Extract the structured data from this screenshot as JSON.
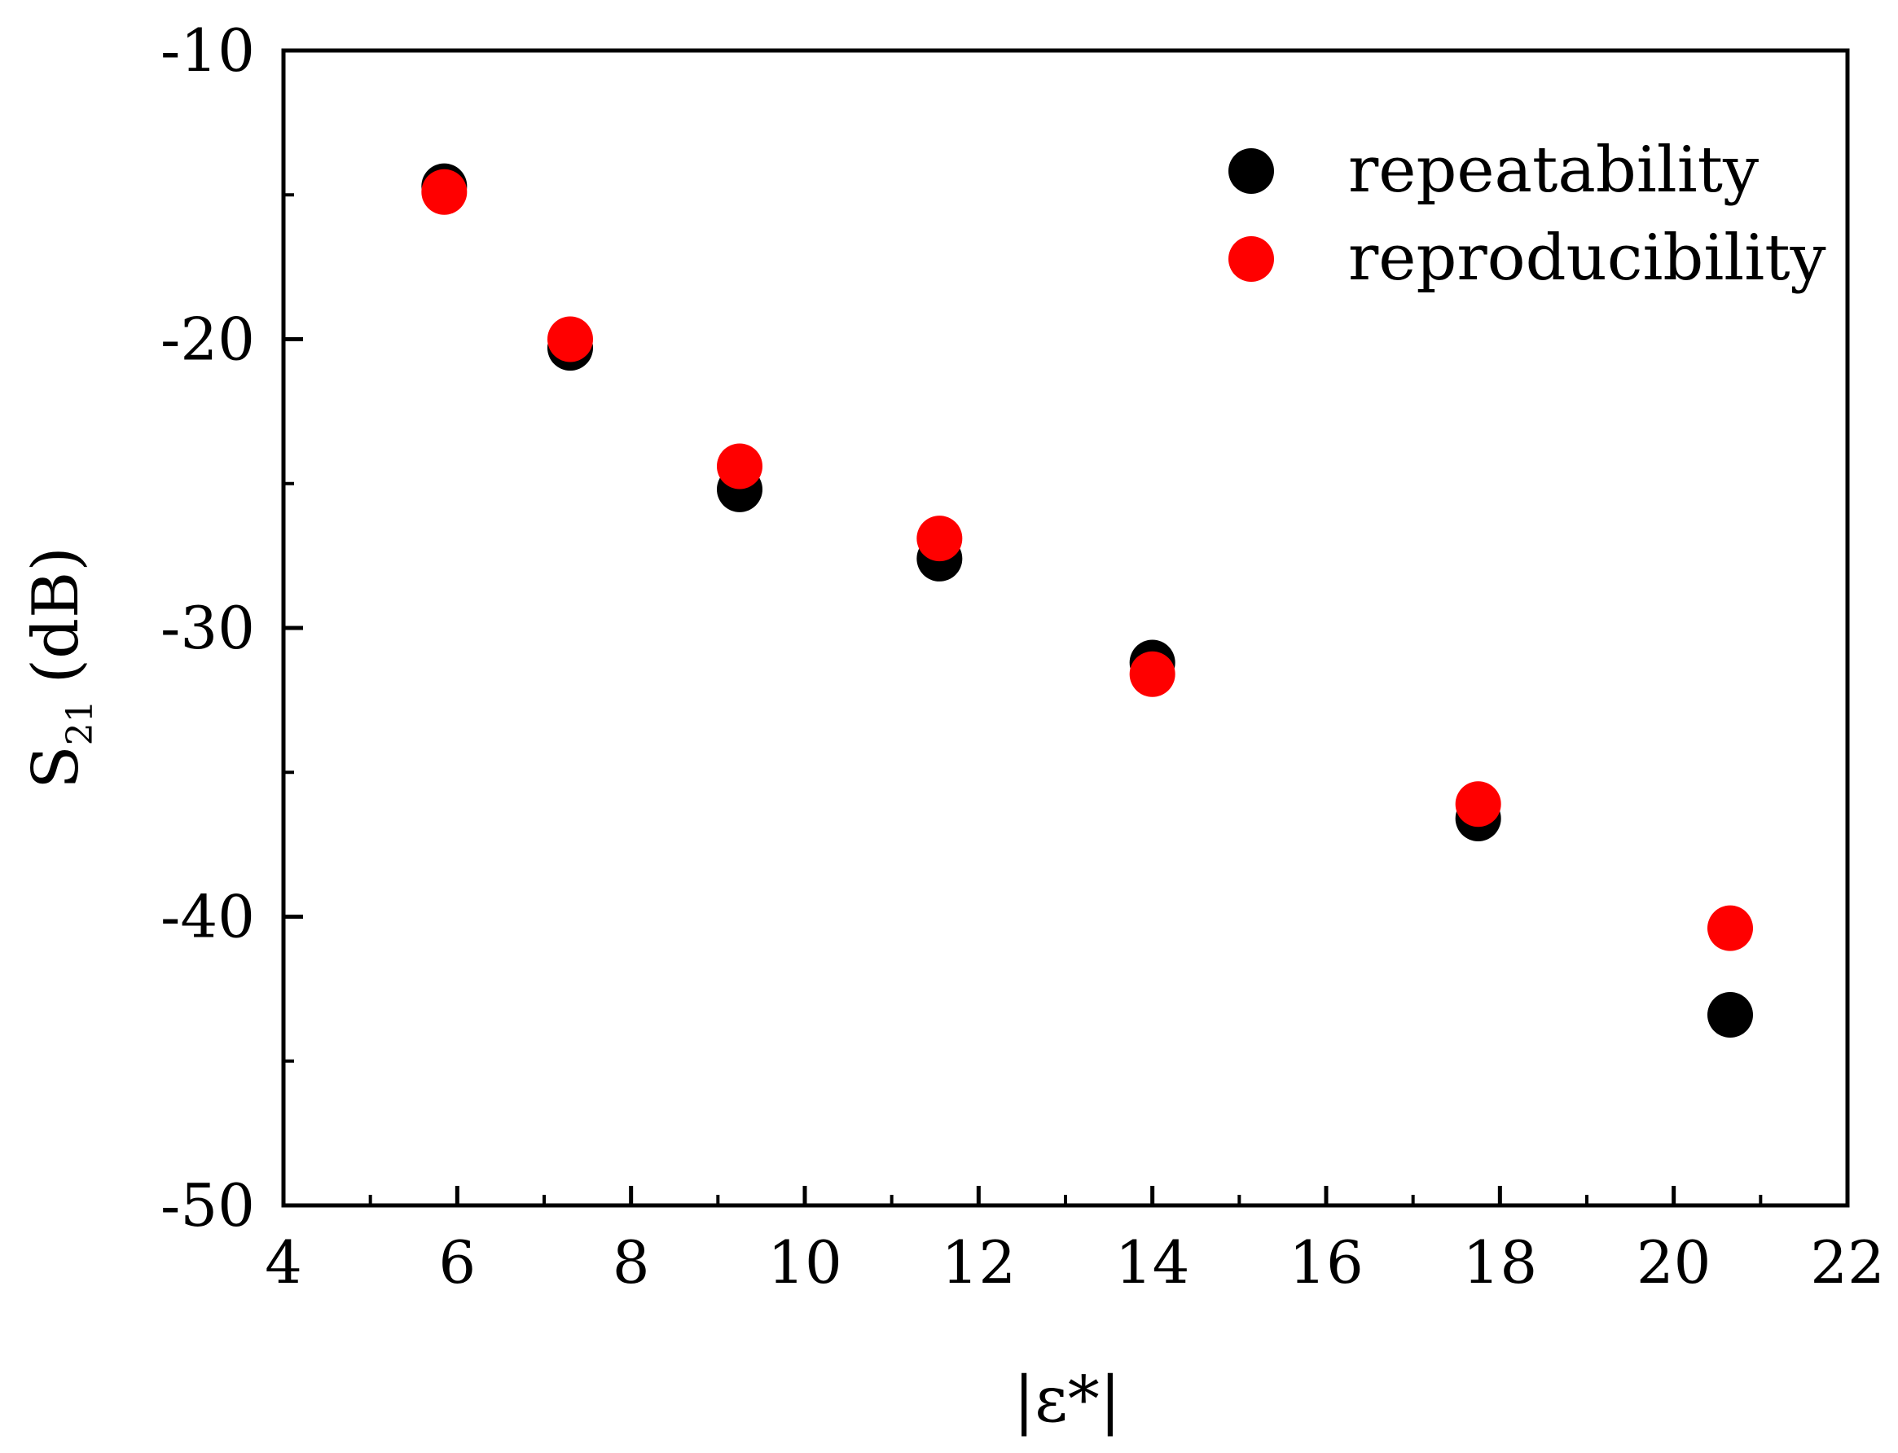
{
  "chart_data": {
    "type": "scatter",
    "title": "",
    "xlabel": "|ε*|",
    "ylabel": {
      "base": "S",
      "subscript": "21",
      "unit": "(dB)"
    },
    "xlim": [
      4,
      22
    ],
    "ylim": [
      -50,
      -10
    ],
    "x_ticks": [
      4,
      6,
      8,
      10,
      12,
      14,
      16,
      18,
      20,
      22
    ],
    "x_tick_labels": [
      "4",
      "6",
      "8",
      "10",
      "12",
      "14",
      "16",
      "18",
      "20",
      "22"
    ],
    "y_ticks": [
      -10,
      -20,
      -30,
      -40,
      -50
    ],
    "y_tick_labels": [
      "-10",
      "-20",
      "-30",
      "-40",
      "-50"
    ],
    "grid": false,
    "legend_position": "top-right",
    "series": [
      {
        "name": "repeatability",
        "color": "#000000",
        "x": [
          5.85,
          7.3,
          9.25,
          11.55,
          14.0,
          17.75,
          20.65
        ],
        "y": [
          -14.7,
          -20.3,
          -25.2,
          -27.6,
          -31.2,
          -36.6,
          -43.4
        ]
      },
      {
        "name": "reproducibility",
        "color": "#ff0000",
        "x": [
          5.85,
          7.3,
          9.25,
          11.55,
          14.0,
          17.75,
          20.65
        ],
        "y": [
          -14.9,
          -20.0,
          -24.4,
          -26.9,
          -31.6,
          -36.1,
          -40.4
        ]
      }
    ]
  }
}
